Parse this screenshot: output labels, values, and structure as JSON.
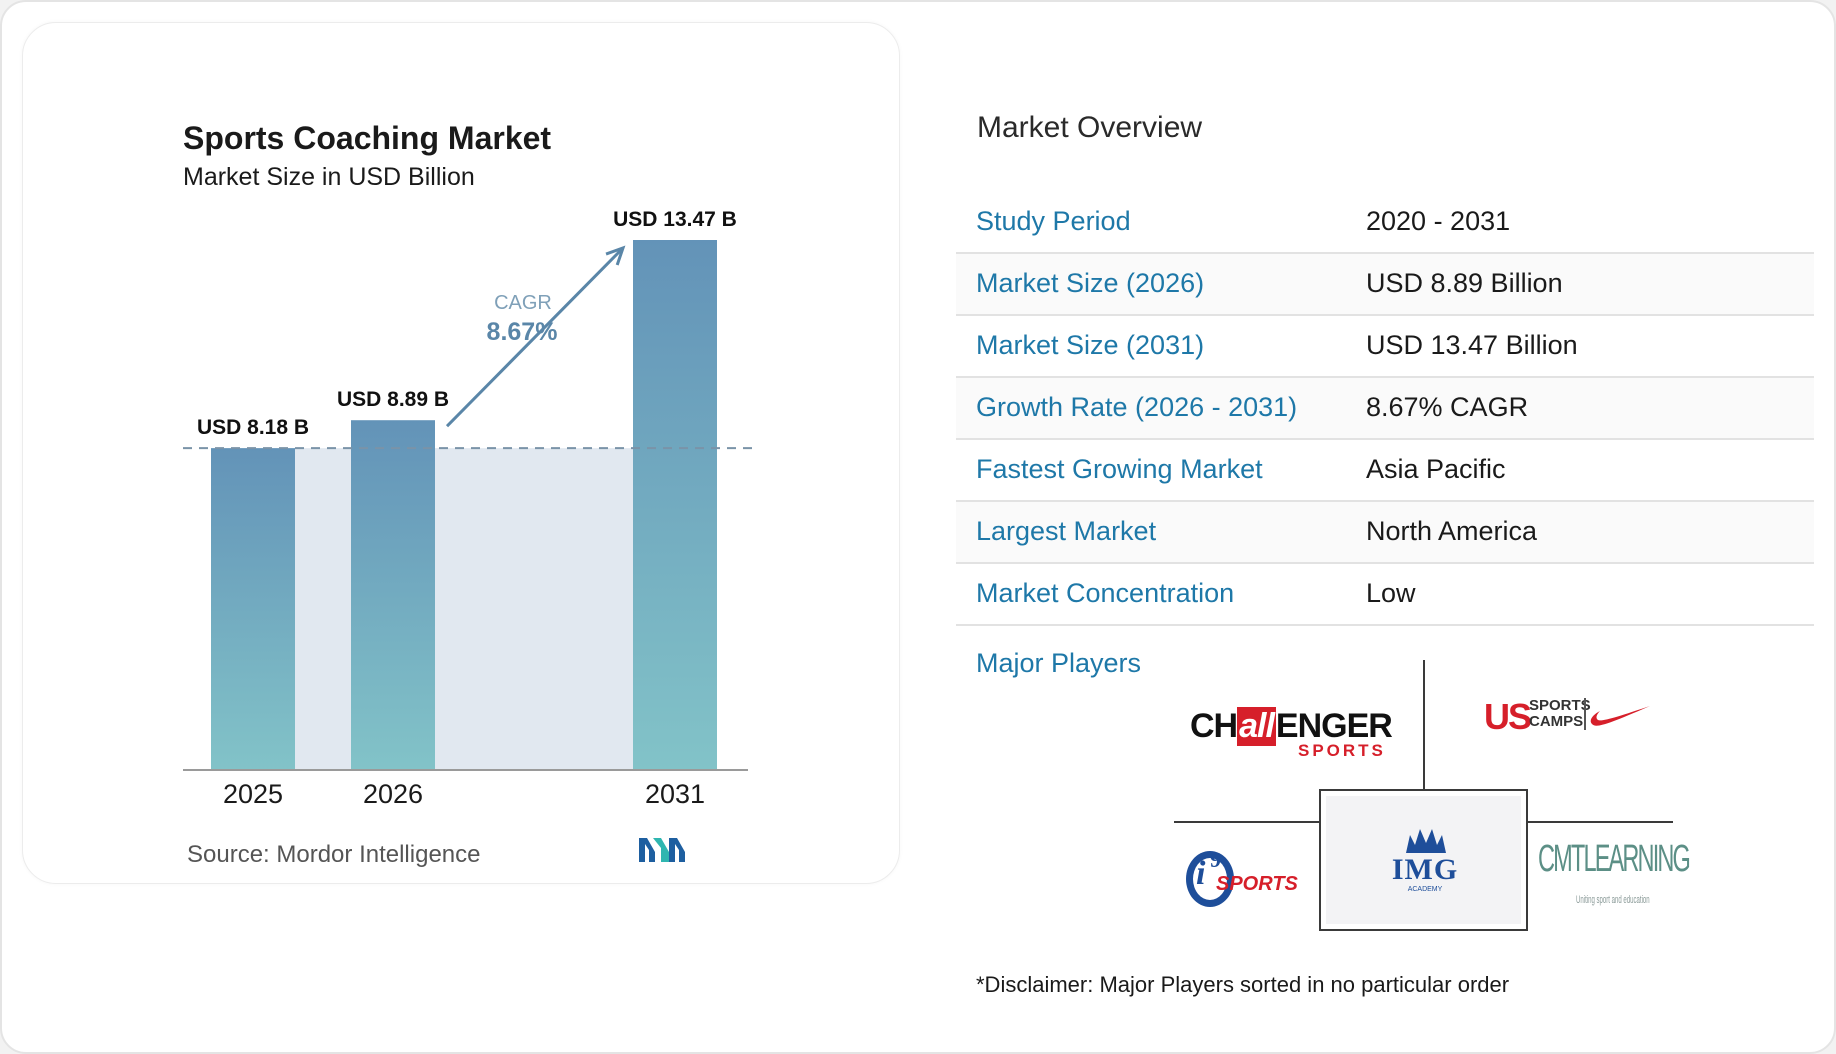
{
  "chart": {
    "title": "Sports Coaching Market",
    "subtitle": "Market Size in USD Billion",
    "source": "Source:  Mordor Intelligence",
    "cagr_label": "CAGR",
    "cagr_value": "8.67%",
    "bar_colors": {
      "top": "#6393b8",
      "bottom": "#82c3c8"
    },
    "band_color": "#e1e8f0",
    "accent": "#5a86a8"
  },
  "chart_data": {
    "type": "bar",
    "categories": [
      "2025",
      "2026",
      "2031"
    ],
    "values": [
      8.18,
      8.89,
      13.47
    ],
    "data_labels": [
      "USD 8.18 B",
      "USD 8.89 B",
      "USD 13.47 B"
    ],
    "title": "Sports Coaching Market",
    "subtitle": "Market Size in USD Billion",
    "ylim": [
      0,
      14
    ],
    "grid": false
  },
  "overview": {
    "title": "Market Overview",
    "rows": [
      {
        "label": "Study Period",
        "value": "2020 - 2031"
      },
      {
        "label": "Market Size (2026)",
        "value": "USD 8.89 Billion"
      },
      {
        "label": "Market Size (2031)",
        "value": "USD 13.47 Billion"
      },
      {
        "label": "Growth Rate (2026 - 2031)",
        "value": "8.67% CAGR"
      },
      {
        "label": "Fastest Growing Market",
        "value": "Asia Pacific"
      },
      {
        "label": "Largest Market",
        "value": "North America"
      },
      {
        "label": "Market Concentration",
        "value": "Low"
      }
    ],
    "players_label": "Major Players",
    "disclaimer": "*Disclaimer: Major Players sorted in no particular order"
  },
  "players": {
    "challenger": {
      "part1": "CH",
      "part2": "all",
      "part3": "ENGER",
      "sub": "SPORTS"
    },
    "ussports": {
      "us": "US",
      "line1": "SPORTS",
      "line2": "CAMPS"
    },
    "i9": {
      "i": "i",
      "nine": "9",
      "word": "SPORTS"
    },
    "img": {
      "word": "IMG",
      "sub": "ACADEMY"
    },
    "cmt": {
      "word": "CMTLEARNING",
      "sub": "Uniting sport and education"
    }
  }
}
